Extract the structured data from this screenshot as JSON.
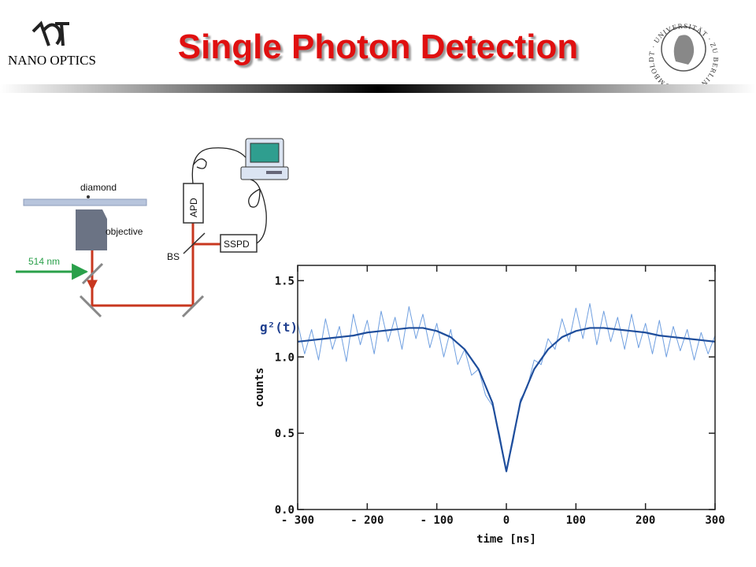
{
  "header": {
    "title": "Single Photon Detection",
    "logo": "NANO OPTICS",
    "seal": "HUMBOLDT · UNIVERSITÄT · ZU BERLIN"
  },
  "diagram": {
    "labels": {
      "diamond": "diamond",
      "objective": "objective",
      "laser": "514 nm",
      "apd": "APD",
      "bs": "BS",
      "sspd": "SSPD"
    }
  },
  "chart_data": {
    "type": "line",
    "x_label": "time [ns]",
    "y_label": "counts",
    "annotation": "g²(t)",
    "xlim": [
      -300,
      300
    ],
    "xticks": [
      {
        "value": -300,
        "label": "- 300"
      },
      {
        "value": -200,
        "label": "- 200"
      },
      {
        "value": -100,
        "label": "- 100"
      },
      0,
      100,
      200,
      300
    ],
    "ylim": [
      0,
      1.6
    ],
    "yticks": [
      {
        "value": 0,
        "label": "0.0"
      },
      0.5,
      {
        "value": 1,
        "label": "1.0"
      },
      1.5
    ],
    "series": [
      {
        "color": "#6f9fe0",
        "x": [
          -300,
          -290,
          -280,
          -270,
          -260,
          -250,
          -240,
          -230,
          -220,
          -210,
          -200,
          -190,
          -180,
          -170,
          -160,
          -150,
          -140,
          -130,
          -120,
          -110,
          -100,
          -90,
          -80,
          -70,
          -60,
          -50,
          -40,
          -30,
          -20,
          -10,
          0,
          10,
          20,
          30,
          40,
          50,
          60,
          70,
          80,
          90,
          100,
          110,
          120,
          130,
          140,
          150,
          160,
          170,
          180,
          190,
          200,
          210,
          220,
          230,
          240,
          250,
          260,
          270,
          280,
          290,
          300
        ],
        "values": [
          1.22,
          1.02,
          1.18,
          0.98,
          1.25,
          1.05,
          1.2,
          0.97,
          1.28,
          1.08,
          1.24,
          1.02,
          1.3,
          1.1,
          1.26,
          1.05,
          1.33,
          1.12,
          1.28,
          1.06,
          1.22,
          1.0,
          1.18,
          0.95,
          1.05,
          0.88,
          0.92,
          0.75,
          0.68,
          0.5,
          0.25,
          0.45,
          0.72,
          0.8,
          0.98,
          0.95,
          1.12,
          1.05,
          1.25,
          1.1,
          1.32,
          1.12,
          1.35,
          1.08,
          1.3,
          1.1,
          1.26,
          1.05,
          1.28,
          1.06,
          1.22,
          1.02,
          1.24,
          1.0,
          1.2,
          1.04,
          1.18,
          0.98,
          1.16,
          1.02,
          1.14
        ]
      },
      {
        "color": "#1f4e9c",
        "x": [
          -300,
          -280,
          -260,
          -240,
          -220,
          -200,
          -180,
          -160,
          -140,
          -120,
          -100,
          -80,
          -60,
          -40,
          -20,
          0,
          20,
          40,
          60,
          80,
          100,
          120,
          140,
          160,
          180,
          200,
          220,
          240,
          260,
          280,
          300
        ],
        "values": [
          1.1,
          1.11,
          1.12,
          1.13,
          1.14,
          1.16,
          1.17,
          1.18,
          1.19,
          1.19,
          1.17,
          1.13,
          1.05,
          0.92,
          0.7,
          0.25,
          0.7,
          0.92,
          1.05,
          1.13,
          1.17,
          1.19,
          1.19,
          1.18,
          1.17,
          1.16,
          1.14,
          1.13,
          1.12,
          1.11,
          1.1
        ]
      }
    ]
  }
}
